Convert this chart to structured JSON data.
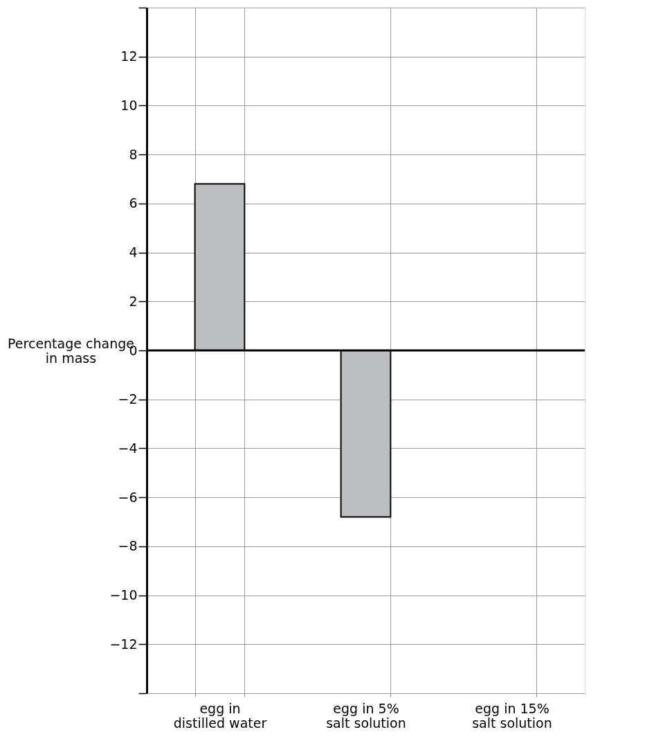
{
  "chart_data": {
    "type": "bar",
    "ylabel": "Percentage change\nin mass",
    "categories": [
      "egg in\ndistilled water",
      "egg in 5%\nsalt solution",
      "egg in 15%\nsalt solution"
    ],
    "values": [
      6.8,
      -6.8,
      null
    ],
    "color": "#bcbdc0",
    "ylim": [
      -14,
      14
    ],
    "yticks": [
      {
        "value": -14,
        "label": null
      },
      {
        "value": -12,
        "label": "−12"
      },
      {
        "value": -10,
        "label": "−10"
      },
      {
        "value": -8,
        "label": "−8"
      },
      {
        "value": -6,
        "label": "−6"
      },
      {
        "value": -4,
        "label": "−4"
      },
      {
        "value": -2,
        "label": "−2"
      },
      0,
      2,
      4,
      6,
      8,
      10,
      12,
      {
        "value": 14,
        "label": null
      }
    ],
    "ref_lines": [
      {
        "axis": "y",
        "value": 0
      }
    ],
    "grid": true
  }
}
